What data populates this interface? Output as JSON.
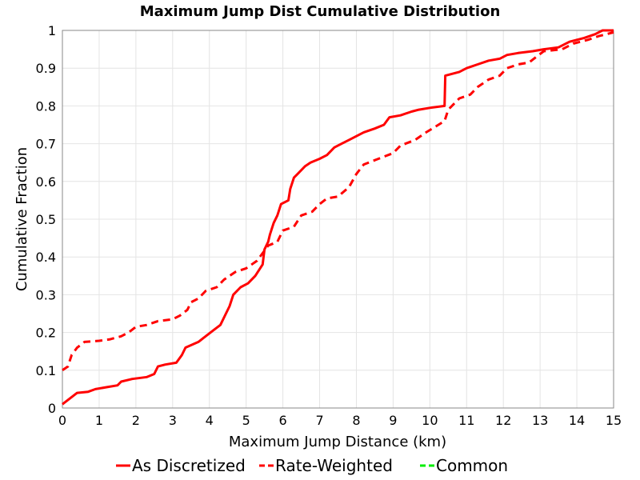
{
  "chart_data": {
    "type": "line",
    "title": "Maximum Jump Dist Cumulative Distribution",
    "xlabel": "Maximum Jump Distance (km)",
    "ylabel": "Cumulative Fraction",
    "xlim": [
      0,
      15
    ],
    "ylim": [
      0,
      1
    ],
    "x_ticks": [
      "0",
      "1",
      "2",
      "3",
      "4",
      "5",
      "6",
      "7",
      "8",
      "9",
      "10",
      "11",
      "12",
      "13",
      "14",
      "15"
    ],
    "y_ticks": [
      "0",
      "0.1",
      "0.2",
      "0.3",
      "0.4",
      "0.5",
      "0.6",
      "0.7",
      "0.8",
      "0.9",
      "1"
    ],
    "grid": true,
    "legend_position": "bottom",
    "series": [
      {
        "name": "As Discretized",
        "color": "#ff0000",
        "dash": "solid",
        "points": [
          [
            0.0,
            0.01
          ],
          [
            0.2,
            0.025
          ],
          [
            0.4,
            0.04
          ],
          [
            0.7,
            0.043
          ],
          [
            0.9,
            0.05
          ],
          [
            1.2,
            0.055
          ],
          [
            1.5,
            0.06
          ],
          [
            1.6,
            0.07
          ],
          [
            1.9,
            0.077
          ],
          [
            2.3,
            0.082
          ],
          [
            2.5,
            0.09
          ],
          [
            2.6,
            0.11
          ],
          [
            2.8,
            0.115
          ],
          [
            3.1,
            0.12
          ],
          [
            3.25,
            0.14
          ],
          [
            3.35,
            0.16
          ],
          [
            3.7,
            0.175
          ],
          [
            3.9,
            0.19
          ],
          [
            4.1,
            0.205
          ],
          [
            4.3,
            0.22
          ],
          [
            4.45,
            0.25
          ],
          [
            4.55,
            0.27
          ],
          [
            4.65,
            0.3
          ],
          [
            4.85,
            0.32
          ],
          [
            5.05,
            0.33
          ],
          [
            5.25,
            0.35
          ],
          [
            5.45,
            0.38
          ],
          [
            5.5,
            0.42
          ],
          [
            5.6,
            0.44
          ],
          [
            5.65,
            0.46
          ],
          [
            5.75,
            0.49
          ],
          [
            5.85,
            0.51
          ],
          [
            5.95,
            0.54
          ],
          [
            6.15,
            0.55
          ],
          [
            6.2,
            0.58
          ],
          [
            6.3,
            0.61
          ],
          [
            6.4,
            0.62
          ],
          [
            6.6,
            0.64
          ],
          [
            6.75,
            0.65
          ],
          [
            7.0,
            0.66
          ],
          [
            7.2,
            0.67
          ],
          [
            7.4,
            0.69
          ],
          [
            7.6,
            0.7
          ],
          [
            7.8,
            0.71
          ],
          [
            8.0,
            0.72
          ],
          [
            8.2,
            0.73
          ],
          [
            8.5,
            0.74
          ],
          [
            8.75,
            0.75
          ],
          [
            8.9,
            0.77
          ],
          [
            9.2,
            0.775
          ],
          [
            9.5,
            0.785
          ],
          [
            9.7,
            0.79
          ],
          [
            10.0,
            0.795
          ],
          [
            10.4,
            0.8
          ],
          [
            10.42,
            0.88
          ],
          [
            10.8,
            0.89
          ],
          [
            11.0,
            0.9
          ],
          [
            11.3,
            0.91
          ],
          [
            11.6,
            0.92
          ],
          [
            11.9,
            0.925
          ],
          [
            12.1,
            0.935
          ],
          [
            12.4,
            0.94
          ],
          [
            12.8,
            0.945
          ],
          [
            13.1,
            0.95
          ],
          [
            13.5,
            0.955
          ],
          [
            13.8,
            0.97
          ],
          [
            14.2,
            0.98
          ],
          [
            14.5,
            0.99
          ],
          [
            14.7,
            1.0
          ],
          [
            15.0,
            1.0
          ]
        ]
      },
      {
        "name": "Rate-Weighted",
        "color": "#ff0000",
        "dash": "dashed",
        "points": [
          [
            0.0,
            0.1
          ],
          [
            0.15,
            0.11
          ],
          [
            0.25,
            0.14
          ],
          [
            0.4,
            0.16
          ],
          [
            0.6,
            0.175
          ],
          [
            1.0,
            0.178
          ],
          [
            1.3,
            0.182
          ],
          [
            1.6,
            0.19
          ],
          [
            1.8,
            0.2
          ],
          [
            2.0,
            0.215
          ],
          [
            2.3,
            0.22
          ],
          [
            2.6,
            0.23
          ],
          [
            3.0,
            0.235
          ],
          [
            3.2,
            0.245
          ],
          [
            3.4,
            0.26
          ],
          [
            3.5,
            0.28
          ],
          [
            3.7,
            0.29
          ],
          [
            3.9,
            0.31
          ],
          [
            4.2,
            0.32
          ],
          [
            4.4,
            0.34
          ],
          [
            4.7,
            0.36
          ],
          [
            5.0,
            0.37
          ],
          [
            5.3,
            0.39
          ],
          [
            5.6,
            0.43
          ],
          [
            5.85,
            0.44
          ],
          [
            6.0,
            0.47
          ],
          [
            6.3,
            0.48
          ],
          [
            6.5,
            0.51
          ],
          [
            6.8,
            0.52
          ],
          [
            7.0,
            0.54
          ],
          [
            7.2,
            0.555
          ],
          [
            7.5,
            0.56
          ],
          [
            7.8,
            0.585
          ],
          [
            8.0,
            0.62
          ],
          [
            8.2,
            0.645
          ],
          [
            8.6,
            0.66
          ],
          [
            9.0,
            0.675
          ],
          [
            9.2,
            0.695
          ],
          [
            9.6,
            0.71
          ],
          [
            9.9,
            0.73
          ],
          [
            10.4,
            0.76
          ],
          [
            10.5,
            0.79
          ],
          [
            10.8,
            0.82
          ],
          [
            11.1,
            0.83
          ],
          [
            11.3,
            0.85
          ],
          [
            11.6,
            0.87
          ],
          [
            11.9,
            0.88
          ],
          [
            12.1,
            0.9
          ],
          [
            12.4,
            0.91
          ],
          [
            12.7,
            0.915
          ],
          [
            12.9,
            0.93
          ],
          [
            13.1,
            0.945
          ],
          [
            13.6,
            0.95
          ],
          [
            13.9,
            0.965
          ],
          [
            14.3,
            0.975
          ],
          [
            14.6,
            0.985
          ],
          [
            15.0,
            0.995
          ]
        ]
      },
      {
        "name": "Common",
        "color": "#00ee00",
        "dash": "dashed",
        "points": []
      }
    ]
  }
}
